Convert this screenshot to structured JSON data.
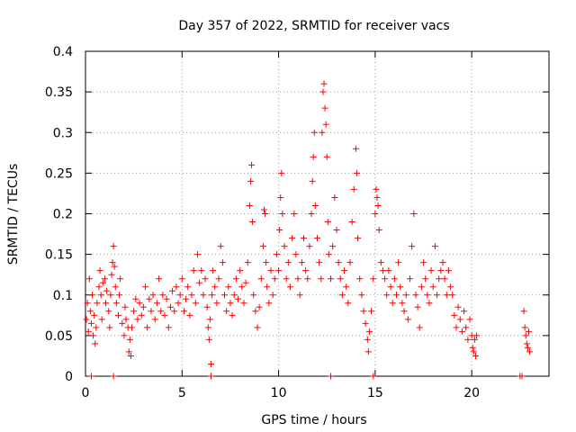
{
  "chart_data": {
    "type": "scatter",
    "title": "Day 357 of 2022, SRMTID for receiver vacs",
    "xlabel": "GPS time / hours",
    "ylabel": "SRMTID / TECUs",
    "xlim": [
      0,
      24
    ],
    "ylim": [
      0,
      0.4
    ],
    "xticks": [
      0,
      5,
      10,
      15,
      20
    ],
    "yticks": [
      0,
      0.05,
      0.1,
      0.15,
      0.2,
      0.25,
      0.3,
      0.35,
      0.4
    ],
    "xtick_labels": [
      "0",
      "5",
      "10",
      "15",
      "20"
    ],
    "ytick_labels": [
      "0",
      "0.05",
      "0.1",
      "0.15",
      "0.2",
      "0.25",
      "0.3",
      "0.35",
      "0.4"
    ],
    "grid": true,
    "marker": "+",
    "color": "#ff0000",
    "series": [
      {
        "name": "SRMTID",
        "points": [
          [
            0.05,
            0.07
          ],
          [
            0.1,
            0.09
          ],
          [
            0.15,
            0.055
          ],
          [
            0.2,
            0.12
          ],
          [
            0.25,
            0.08
          ],
          [
            0.3,
            0.065
          ],
          [
            0.35,
            0.1
          ],
          [
            0.4,
            0.05
          ],
          [
            0.45,
            0.075
          ],
          [
            0.5,
            0.04
          ],
          [
            0.55,
            0.06
          ],
          [
            0.6,
            0.09
          ],
          [
            0.7,
            0.11
          ],
          [
            0.75,
            0.13
          ],
          [
            0.8,
            0.1
          ],
          [
            0.85,
            0.07
          ],
          [
            0.9,
            0.115
          ],
          [
            1.0,
            0.12
          ],
          [
            1.05,
            0.09
          ],
          [
            1.1,
            0.105
          ],
          [
            1.2,
            0.08
          ],
          [
            1.25,
            0.06
          ],
          [
            1.3,
            0.1
          ],
          [
            1.35,
            0.125
          ],
          [
            1.4,
            0.14
          ],
          [
            1.45,
            0.16
          ],
          [
            1.5,
            0.135
          ],
          [
            1.55,
            0.11
          ],
          [
            1.6,
            0.09
          ],
          [
            1.7,
            0.075
          ],
          [
            1.75,
            0.1
          ],
          [
            1.8,
            0.12
          ],
          [
            1.9,
            0.065
          ],
          [
            2.0,
            0.05
          ],
          [
            2.05,
            0.085
          ],
          [
            2.1,
            0.07
          ],
          [
            2.2,
            0.06
          ],
          [
            2.25,
            0.03
          ],
          [
            2.3,
            0.045
          ],
          [
            2.35,
            0.025
          ],
          [
            2.4,
            0.06
          ],
          [
            2.5,
            0.08
          ],
          [
            2.6,
            0.095
          ],
          [
            2.7,
            0.07
          ],
          [
            2.8,
            0.09
          ],
          [
            2.9,
            0.075
          ],
          [
            3.0,
            0.085
          ],
          [
            3.1,
            0.11
          ],
          [
            3.2,
            0.06
          ],
          [
            3.3,
            0.095
          ],
          [
            3.4,
            0.08
          ],
          [
            3.5,
            0.1
          ],
          [
            3.6,
            0.07
          ],
          [
            3.7,
            0.09
          ],
          [
            3.8,
            0.12
          ],
          [
            3.9,
            0.08
          ],
          [
            4.0,
            0.1
          ],
          [
            4.1,
            0.075
          ],
          [
            4.2,
            0.095
          ],
          [
            4.3,
            0.06
          ],
          [
            4.4,
            0.085
          ],
          [
            4.5,
            0.105
          ],
          [
            4.6,
            0.08
          ],
          [
            4.7,
            0.11
          ],
          [
            4.8,
            0.09
          ],
          [
            4.9,
            0.1
          ],
          [
            5.0,
            0.12
          ],
          [
            5.1,
            0.08
          ],
          [
            5.2,
            0.095
          ],
          [
            5.3,
            0.11
          ],
          [
            5.4,
            0.075
          ],
          [
            5.5,
            0.1
          ],
          [
            5.6,
            0.13
          ],
          [
            5.7,
            0.09
          ],
          [
            5.8,
            0.15
          ],
          [
            5.9,
            0.115
          ],
          [
            6.0,
            0.13
          ],
          [
            6.1,
            0.1
          ],
          [
            6.2,
            0.12
          ],
          [
            6.3,
            0.085
          ],
          [
            6.35,
            0.06
          ],
          [
            6.4,
            0.045
          ],
          [
            6.45,
            0.07
          ],
          [
            6.5,
            0.015
          ],
          [
            6.55,
            0.1
          ],
          [
            6.6,
            0.13
          ],
          [
            6.7,
            0.11
          ],
          [
            6.8,
            0.09
          ],
          [
            6.9,
            0.12
          ],
          [
            7.0,
            0.16
          ],
          [
            7.1,
            0.14
          ],
          [
            7.2,
            0.1
          ],
          [
            7.3,
            0.08
          ],
          [
            7.4,
            0.11
          ],
          [
            7.5,
            0.09
          ],
          [
            7.6,
            0.075
          ],
          [
            7.7,
            0.1
          ],
          [
            7.8,
            0.12
          ],
          [
            7.9,
            0.095
          ],
          [
            8.0,
            0.13
          ],
          [
            8.1,
            0.11
          ],
          [
            8.2,
            0.09
          ],
          [
            8.3,
            0.115
          ],
          [
            8.4,
            0.14
          ],
          [
            8.5,
            0.21
          ],
          [
            8.55,
            0.24
          ],
          [
            8.6,
            0.26
          ],
          [
            8.65,
            0.19
          ],
          [
            8.7,
            0.1
          ],
          [
            8.8,
            0.08
          ],
          [
            8.9,
            0.06
          ],
          [
            9.0,
            0.085
          ],
          [
            9.1,
            0.12
          ],
          [
            9.2,
            0.16
          ],
          [
            9.25,
            0.205
          ],
          [
            9.3,
            0.2
          ],
          [
            9.35,
            0.14
          ],
          [
            9.4,
            0.11
          ],
          [
            9.5,
            0.09
          ],
          [
            9.6,
            0.13
          ],
          [
            9.7,
            0.1
          ],
          [
            9.8,
            0.12
          ],
          [
            9.9,
            0.15
          ],
          [
            10.0,
            0.13
          ],
          [
            10.05,
            0.18
          ],
          [
            10.1,
            0.22
          ],
          [
            10.15,
            0.25
          ],
          [
            10.2,
            0.2
          ],
          [
            10.3,
            0.16
          ],
          [
            10.4,
            0.12
          ],
          [
            10.5,
            0.14
          ],
          [
            10.6,
            0.11
          ],
          [
            10.7,
            0.17
          ],
          [
            10.8,
            0.2
          ],
          [
            10.9,
            0.15
          ],
          [
            11.0,
            0.12
          ],
          [
            11.1,
            0.1
          ],
          [
            11.2,
            0.14
          ],
          [
            11.3,
            0.17
          ],
          [
            11.4,
            0.13
          ],
          [
            11.5,
            0.12
          ],
          [
            11.6,
            0.16
          ],
          [
            11.7,
            0.2
          ],
          [
            11.75,
            0.24
          ],
          [
            11.8,
            0.27
          ],
          [
            11.85,
            0.3
          ],
          [
            11.9,
            0.21
          ],
          [
            12.0,
            0.17
          ],
          [
            12.1,
            0.14
          ],
          [
            12.2,
            0.12
          ],
          [
            12.25,
            0.3
          ],
          [
            12.3,
            0.35
          ],
          [
            12.35,
            0.36
          ],
          [
            12.4,
            0.33
          ],
          [
            12.45,
            0.31
          ],
          [
            12.5,
            0.27
          ],
          [
            12.55,
            0.19
          ],
          [
            12.6,
            0.15
          ],
          [
            12.7,
            0.12
          ],
          [
            12.8,
            0.16
          ],
          [
            12.9,
            0.22
          ],
          [
            13.0,
            0.18
          ],
          [
            13.1,
            0.14
          ],
          [
            13.2,
            0.12
          ],
          [
            13.3,
            0.1
          ],
          [
            13.4,
            0.13
          ],
          [
            13.5,
            0.11
          ],
          [
            13.6,
            0.09
          ],
          [
            13.7,
            0.14
          ],
          [
            13.8,
            0.19
          ],
          [
            13.9,
            0.23
          ],
          [
            14.0,
            0.28
          ],
          [
            14.05,
            0.25
          ],
          [
            14.1,
            0.17
          ],
          [
            14.2,
            0.12
          ],
          [
            14.3,
            0.1
          ],
          [
            14.4,
            0.08
          ],
          [
            14.5,
            0.065
          ],
          [
            14.6,
            0.045
          ],
          [
            14.65,
            0.03
          ],
          [
            14.7,
            0.055
          ],
          [
            14.8,
            0.08
          ],
          [
            14.9,
            0.12
          ],
          [
            15.0,
            0.2
          ],
          [
            15.05,
            0.23
          ],
          [
            15.1,
            0.22
          ],
          [
            15.15,
            0.21
          ],
          [
            15.2,
            0.18
          ],
          [
            15.3,
            0.14
          ],
          [
            15.4,
            0.13
          ],
          [
            15.5,
            0.12
          ],
          [
            15.6,
            0.1
          ],
          [
            15.7,
            0.13
          ],
          [
            15.8,
            0.11
          ],
          [
            15.9,
            0.09
          ],
          [
            16.0,
            0.12
          ],
          [
            16.1,
            0.1
          ],
          [
            16.2,
            0.14
          ],
          [
            16.3,
            0.11
          ],
          [
            16.4,
            0.09
          ],
          [
            16.5,
            0.08
          ],
          [
            16.6,
            0.1
          ],
          [
            16.7,
            0.07
          ],
          [
            16.8,
            0.12
          ],
          [
            16.9,
            0.16
          ],
          [
            17.0,
            0.2
          ],
          [
            17.1,
            0.1
          ],
          [
            17.2,
            0.085
          ],
          [
            17.3,
            0.06
          ],
          [
            17.4,
            0.11
          ],
          [
            17.5,
            0.14
          ],
          [
            17.6,
            0.12
          ],
          [
            17.7,
            0.1
          ],
          [
            17.8,
            0.09
          ],
          [
            17.9,
            0.13
          ],
          [
            18.0,
            0.11
          ],
          [
            18.1,
            0.16
          ],
          [
            18.2,
            0.1
          ],
          [
            18.3,
            0.12
          ],
          [
            18.4,
            0.13
          ],
          [
            18.5,
            0.14
          ],
          [
            18.6,
            0.12
          ],
          [
            18.7,
            0.1
          ],
          [
            18.8,
            0.13
          ],
          [
            18.9,
            0.11
          ],
          [
            19.0,
            0.1
          ],
          [
            19.1,
            0.075
          ],
          [
            19.2,
            0.06
          ],
          [
            19.3,
            0.085
          ],
          [
            19.4,
            0.07
          ],
          [
            19.5,
            0.055
          ],
          [
            19.6,
            0.08
          ],
          [
            19.7,
            0.06
          ],
          [
            19.8,
            0.045
          ],
          [
            19.9,
            0.07
          ],
          [
            20.0,
            0.05
          ],
          [
            20.05,
            0.035
          ],
          [
            20.1,
            0.03
          ],
          [
            20.15,
            0.045
          ],
          [
            20.2,
            0.025
          ],
          [
            20.25,
            0.05
          ],
          [
            22.7,
            0.08
          ],
          [
            22.75,
            0.06
          ],
          [
            22.8,
            0.05
          ],
          [
            22.85,
            0.04
          ],
          [
            22.9,
            0.035
          ],
          [
            22.95,
            0.055
          ],
          [
            23.0,
            0.03
          ],
          [
            0.3,
            0.0
          ],
          [
            1.45,
            0.0
          ],
          [
            6.5,
            0.0
          ],
          [
            12.7,
            0.0
          ],
          [
            14.9,
            0.0
          ],
          [
            22.5,
            0.0
          ],
          [
            22.6,
            0.0
          ]
        ]
      }
    ]
  }
}
